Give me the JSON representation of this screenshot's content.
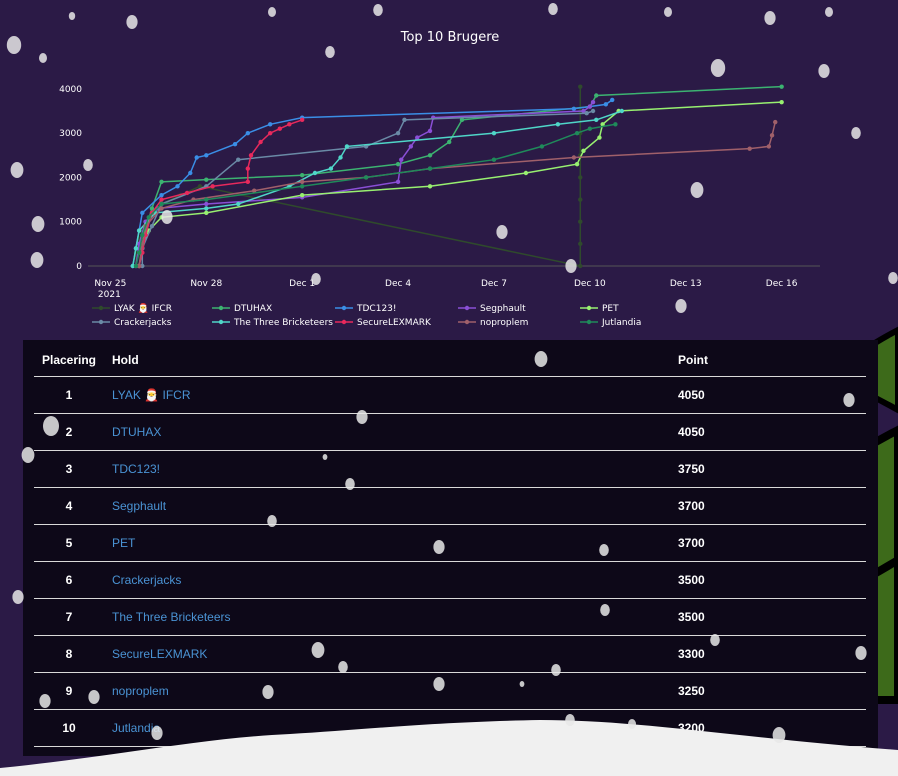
{
  "chart_data": {
    "type": "line",
    "title": "Top 10 Brugere",
    "xlabel": "",
    "ylabel": "",
    "x_ticks": [
      "Nov 25\n2021",
      "Nov 28",
      "Dec 1",
      "Dec 4",
      "Dec 7",
      "Dec 10",
      "Dec 13",
      "Dec 16"
    ],
    "y_ticks": [
      0,
      1000,
      2000,
      3000,
      4000
    ],
    "ylim": [
      0,
      4200
    ],
    "xlim_days": [
      -0.7,
      22.2
    ],
    "grid": false,
    "legend": "bottom",
    "series": [
      {
        "name": "LYAK 🎅 IFCR",
        "color": "#2f4a2c",
        "points": [
          [
            0.8,
            0
          ],
          [
            0.8,
            300
          ],
          [
            0.9,
            600
          ],
          [
            1.0,
            800
          ],
          [
            1.1,
            1000
          ],
          [
            1.3,
            1200
          ],
          [
            1.6,
            1400
          ],
          [
            2.2,
            1600
          ],
          [
            2.8,
            1800
          ],
          [
            14.7,
            0
          ],
          [
            14.7,
            500
          ],
          [
            14.7,
            1000
          ],
          [
            14.7,
            1500
          ],
          [
            14.7,
            2000
          ],
          [
            14.7,
            2500
          ],
          [
            14.7,
            3000
          ],
          [
            14.7,
            3500
          ],
          [
            14.7,
            4050
          ]
        ]
      },
      {
        "name": "DTUHAX",
        "color": "#3cb371",
        "points": [
          [
            0.9,
            0
          ],
          [
            1.0,
            400
          ],
          [
            1.1,
            800
          ],
          [
            1.3,
            1300
          ],
          [
            1.6,
            1900
          ],
          [
            3.0,
            1950
          ],
          [
            6.0,
            2050
          ],
          [
            9.0,
            2300
          ],
          [
            10.0,
            2500
          ],
          [
            10.6,
            2800
          ],
          [
            11.0,
            3300
          ],
          [
            15.0,
            3600
          ],
          [
            15.2,
            3850
          ],
          [
            21.0,
            4050
          ]
        ]
      },
      {
        "name": "TDC123!",
        "color": "#3a8ee6",
        "points": [
          [
            0.7,
            0
          ],
          [
            0.8,
            400
          ],
          [
            0.9,
            800
          ],
          [
            1.0,
            1200
          ],
          [
            1.6,
            1600
          ],
          [
            2.1,
            1800
          ],
          [
            2.5,
            2100
          ],
          [
            2.7,
            2450
          ],
          [
            3.0,
            2500
          ],
          [
            3.9,
            2750
          ],
          [
            4.3,
            3000
          ],
          [
            5.0,
            3200
          ],
          [
            6.0,
            3350
          ],
          [
            14.5,
            3550
          ],
          [
            15.5,
            3650
          ],
          [
            15.7,
            3750
          ]
        ]
      },
      {
        "name": "Segphault",
        "color": "#8a4fd6",
        "points": [
          [
            0.8,
            0
          ],
          [
            0.9,
            500
          ],
          [
            1.1,
            1000
          ],
          [
            1.5,
            1300
          ],
          [
            3.0,
            1400
          ],
          [
            6.0,
            1550
          ],
          [
            9.0,
            1900
          ],
          [
            9.1,
            2400
          ],
          [
            9.4,
            2700
          ],
          [
            9.6,
            2900
          ],
          [
            10.0,
            3050
          ],
          [
            10.1,
            3350
          ],
          [
            14.8,
            3500
          ],
          [
            15.0,
            3600
          ],
          [
            15.1,
            3700
          ]
        ]
      },
      {
        "name": "PET",
        "color": "#98f070",
        "points": [
          [
            0.9,
            0
          ],
          [
            1.0,
            400
          ],
          [
            1.2,
            800
          ],
          [
            1.6,
            1100
          ],
          [
            3.0,
            1200
          ],
          [
            6.0,
            1600
          ],
          [
            10.0,
            1800
          ],
          [
            13.0,
            2100
          ],
          [
            14.6,
            2300
          ],
          [
            14.8,
            2600
          ],
          [
            15.3,
            2900
          ],
          [
            15.4,
            3200
          ],
          [
            15.9,
            3500
          ],
          [
            21.0,
            3700
          ]
        ]
      },
      {
        "name": "Crackerjacks",
        "color": "#6a8aa6",
        "points": [
          [
            1.0,
            0
          ],
          [
            1.0,
            400
          ],
          [
            1.3,
            900
          ],
          [
            1.6,
            1400
          ],
          [
            3.0,
            1800
          ],
          [
            4.0,
            2400
          ],
          [
            8.0,
            2700
          ],
          [
            9.0,
            3000
          ],
          [
            9.2,
            3300
          ],
          [
            14.9,
            3450
          ],
          [
            15.1,
            3500
          ]
        ]
      },
      {
        "name": "The Three Bricketeers",
        "color": "#4fd6c8",
        "points": [
          [
            0.7,
            0
          ],
          [
            0.8,
            400
          ],
          [
            0.9,
            800
          ],
          [
            1.4,
            1200
          ],
          [
            3.0,
            1300
          ],
          [
            4.0,
            1400
          ],
          [
            5.6,
            1800
          ],
          [
            6.4,
            2100
          ],
          [
            6.9,
            2200
          ],
          [
            7.2,
            2450
          ],
          [
            7.4,
            2700
          ],
          [
            12.0,
            3000
          ],
          [
            14.0,
            3200
          ],
          [
            15.2,
            3300
          ],
          [
            16.0,
            3500
          ]
        ]
      },
      {
        "name": "SecureLEXMARK",
        "color": "#e8295c",
        "points": [
          [
            0.9,
            0
          ],
          [
            1.0,
            300
          ],
          [
            1.1,
            700
          ],
          [
            1.3,
            1200
          ],
          [
            1.6,
            1500
          ],
          [
            2.4,
            1650
          ],
          [
            3.2,
            1800
          ],
          [
            4.3,
            1900
          ],
          [
            4.3,
            2200
          ],
          [
            4.4,
            2500
          ],
          [
            4.7,
            2800
          ],
          [
            5.0,
            3000
          ],
          [
            5.3,
            3100
          ],
          [
            5.6,
            3200
          ],
          [
            6.0,
            3300
          ]
        ]
      },
      {
        "name": "noproplem",
        "color": "#a0606a",
        "points": [
          [
            0.9,
            0
          ],
          [
            1.0,
            500
          ],
          [
            1.1,
            900
          ],
          [
            1.6,
            1300
          ],
          [
            2.6,
            1500
          ],
          [
            4.5,
            1700
          ],
          [
            6.0,
            1900
          ],
          [
            8.0,
            2000
          ],
          [
            10.0,
            2200
          ],
          [
            14.5,
            2450
          ],
          [
            20.0,
            2650
          ],
          [
            20.6,
            2700
          ],
          [
            20.7,
            2950
          ],
          [
            20.8,
            3250
          ]
        ]
      },
      {
        "name": "Jutlandia",
        "color": "#1f8a5a",
        "points": [
          [
            0.8,
            0
          ],
          [
            0.9,
            300
          ],
          [
            1.0,
            700
          ],
          [
            1.2,
            1100
          ],
          [
            1.6,
            1400
          ],
          [
            3.0,
            1500
          ],
          [
            6.0,
            1800
          ],
          [
            8.0,
            2000
          ],
          [
            10.0,
            2200
          ],
          [
            12.0,
            2400
          ],
          [
            13.5,
            2700
          ],
          [
            14.6,
            3000
          ],
          [
            15.0,
            3100
          ],
          [
            15.8,
            3200
          ]
        ]
      }
    ]
  },
  "table": {
    "headers": {
      "rank": "Placering",
      "team": "Hold",
      "points": "Point"
    },
    "rows": [
      {
        "rank": "1",
        "team": "LYAK 🎅 IFCR",
        "points": "4050"
      },
      {
        "rank": "2",
        "team": "DTUHAX",
        "points": "4050"
      },
      {
        "rank": "3",
        "team": "TDC123!",
        "points": "3750"
      },
      {
        "rank": "4",
        "team": "Segphault",
        "points": "3700"
      },
      {
        "rank": "5",
        "team": "PET",
        "points": "3700"
      },
      {
        "rank": "6",
        "team": "Crackerjacks",
        "points": "3500"
      },
      {
        "rank": "7",
        "team": "The Three Bricketeers",
        "points": "3500"
      },
      {
        "rank": "8",
        "team": "SecureLEXMARK",
        "points": "3300"
      },
      {
        "rank": "9",
        "team": "noproplem",
        "points": "3250"
      },
      {
        "rank": "10",
        "team": "Jutlandia",
        "points": "3200"
      }
    ]
  },
  "colors": {
    "background": "#2b1a46",
    "panel": "#0d0818",
    "link": "#4a93d4",
    "tree": "#3d6a1a",
    "snow": "#e8e8e8"
  },
  "decorations": {
    "background_icons": [
      "snowflake-icon",
      "christmas-tree-icon",
      "snow-drift"
    ]
  }
}
